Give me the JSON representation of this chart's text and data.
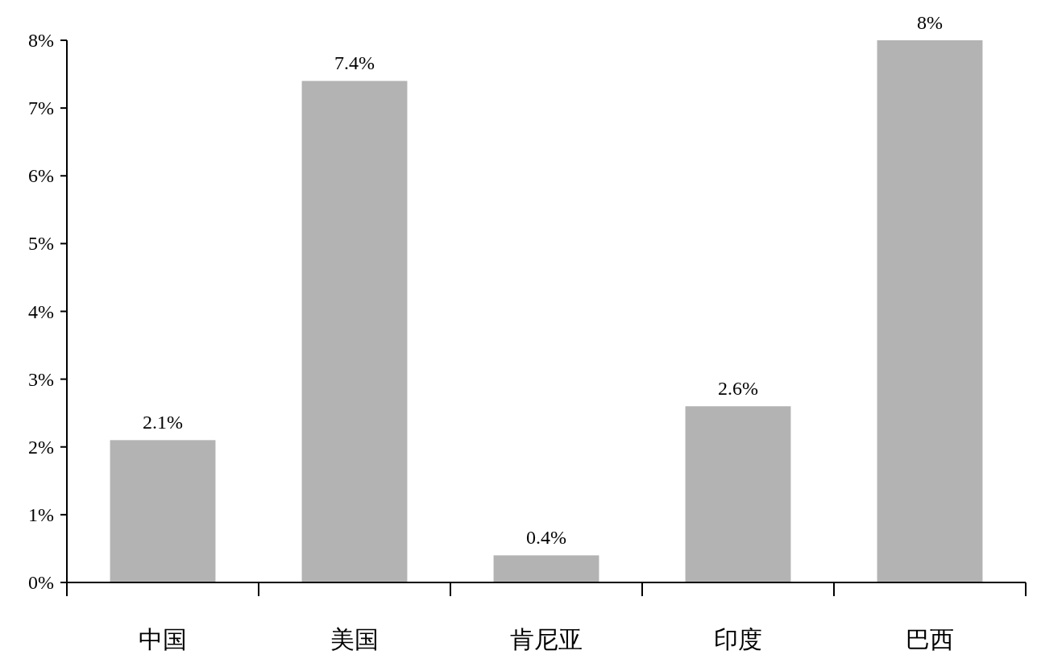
{
  "chart_data": {
    "type": "bar",
    "categories": [
      "中国",
      "美国",
      "肯尼亚",
      "印度",
      "巴西"
    ],
    "values": [
      2.1,
      7.4,
      0.4,
      2.6,
      8
    ],
    "value_labels": [
      "2.1%",
      "7.4%",
      "0.4%",
      "2.6%",
      "8%"
    ],
    "color": "#b3b3b3",
    "ylim": [
      0,
      8
    ],
    "yticks": [
      {
        "value": 0,
        "label": "0%"
      },
      {
        "value": 1,
        "label": "1%"
      },
      {
        "value": 2,
        "label": "2%"
      },
      {
        "value": 3,
        "label": "3%"
      },
      {
        "value": 4,
        "label": "4%"
      },
      {
        "value": 5,
        "label": "5%"
      },
      {
        "value": 6,
        "label": "6%"
      },
      {
        "value": 7,
        "label": "7%"
      },
      {
        "value": 8,
        "label": "8%"
      }
    ],
    "grid": false
  }
}
